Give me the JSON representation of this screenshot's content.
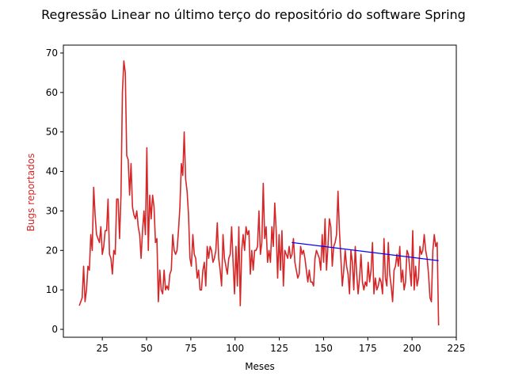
{
  "chart_data": {
    "type": "line",
    "title": "Regressão Linear no último terço do repositório do software Spring",
    "xlabel": "Meses",
    "ylabel": "Bugs reportados",
    "xlim": [
      3,
      225
    ],
    "ylim": [
      -2,
      72
    ],
    "xticks": [
      25,
      50,
      75,
      100,
      125,
      150,
      175,
      200,
      225
    ],
    "yticks": [
      0,
      10,
      20,
      30,
      40,
      50,
      60,
      70
    ],
    "grid": false,
    "colors": {
      "data_line": "#d62728",
      "regression_line": "#0000ff",
      "ylabel": "#d62728"
    },
    "series": [
      {
        "x_start": 12,
        "values": [
          6,
          7,
          8,
          16,
          7,
          10,
          16,
          15,
          24,
          20,
          36,
          29,
          24,
          23,
          22,
          26,
          19,
          21,
          25,
          25,
          33,
          19,
          18,
          14,
          20,
          19,
          33,
          33,
          23,
          34,
          60,
          68,
          65,
          44,
          43,
          34,
          42,
          31,
          29,
          28,
          30,
          26,
          24,
          18,
          25,
          30,
          24,
          46,
          20,
          34,
          28,
          34,
          31,
          22,
          23,
          7,
          15,
          10,
          9,
          15,
          10,
          11,
          10,
          14,
          15,
          24,
          20,
          19,
          20,
          25,
          31,
          42,
          39,
          50,
          38,
          35,
          29,
          18,
          16,
          24,
          19,
          18,
          13,
          15,
          10,
          10,
          15,
          17,
          11,
          21,
          18,
          21,
          20,
          17,
          18,
          20,
          27,
          18,
          15,
          11,
          24,
          18,
          16,
          14,
          18,
          19,
          26,
          17,
          9,
          21,
          11,
          26,
          6,
          20,
          24,
          20,
          26,
          24,
          25,
          14,
          20,
          15,
          20,
          20,
          21,
          30,
          19,
          22,
          37,
          23,
          26,
          17,
          20,
          17,
          26,
          21,
          32,
          25,
          13,
          24,
          15,
          25,
          11,
          20,
          19,
          18,
          21,
          18,
          19,
          23,
          17,
          15,
          13,
          14,
          21,
          19,
          20,
          18,
          15,
          12,
          15,
          12,
          12,
          11,
          18,
          20,
          19,
          18,
          15,
          24,
          17,
          28,
          15,
          21,
          28,
          26,
          16,
          21,
          22,
          24,
          35,
          25,
          18,
          11,
          15,
          20,
          16,
          14,
          9,
          20,
          17,
          10,
          21,
          14,
          9,
          13,
          19,
          12,
          10,
          12,
          11,
          17,
          12,
          15,
          22,
          9,
          13,
          10,
          11,
          13,
          12,
          9,
          23,
          13,
          11,
          22,
          14,
          11,
          7,
          15,
          16,
          19,
          16,
          21,
          12,
          15,
          10,
          12,
          20,
          19,
          15,
          11,
          25,
          10,
          16,
          11,
          13,
          21,
          19,
          20,
          24,
          20,
          18,
          14,
          8,
          7,
          20,
          24,
          21,
          22,
          1
        ],
        "x_end": 215
      },
      {
        "type": "regression",
        "x": [
          132,
          215
        ],
        "y": [
          22,
          17.4
        ]
      }
    ]
  }
}
